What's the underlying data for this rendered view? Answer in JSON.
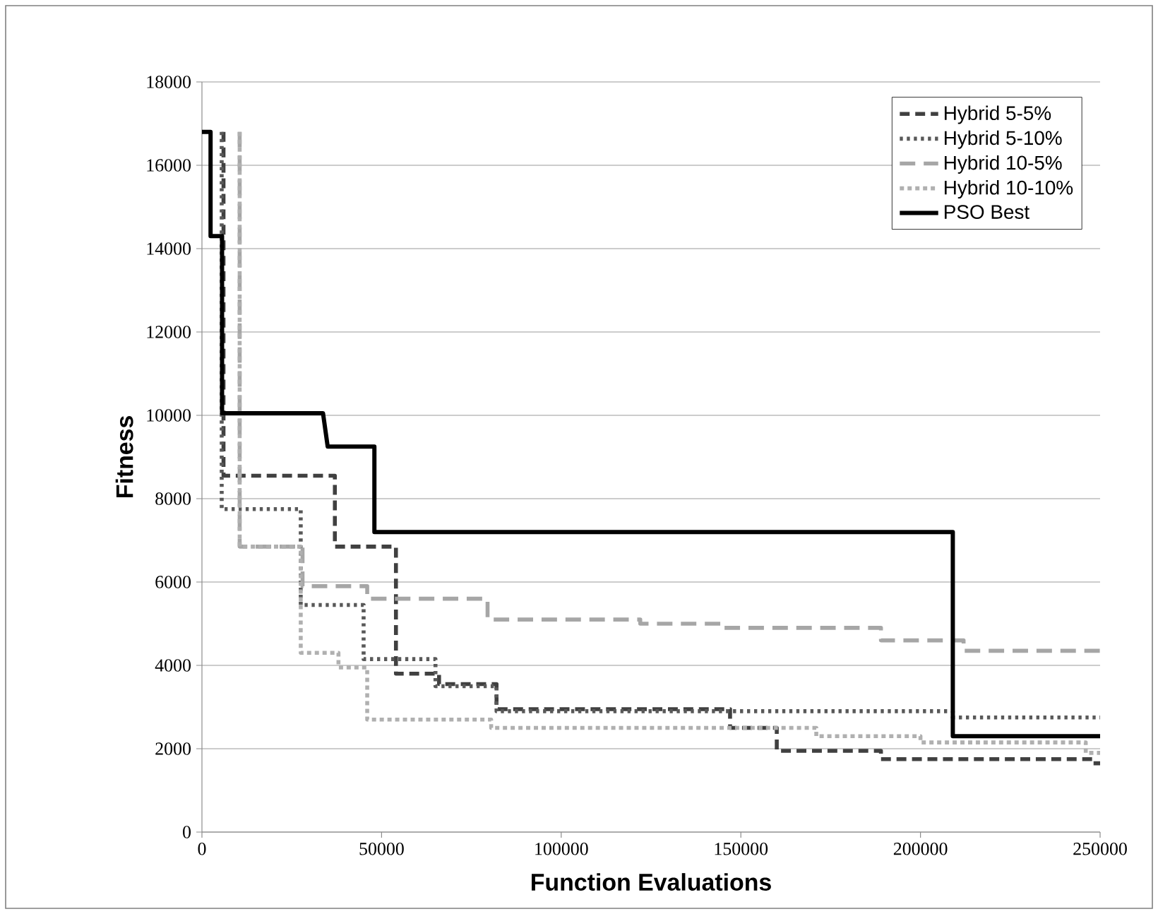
{
  "chart_data": {
    "type": "line",
    "xlabel": "Function Evaluations",
    "ylabel": "Fitness",
    "xlim": [
      0,
      250000
    ],
    "xticks": [
      0,
      50000,
      100000,
      150000,
      200000,
      250000
    ],
    "ylim": [
      0,
      18000
    ],
    "yticks": [
      0,
      2000,
      4000,
      6000,
      8000,
      10000,
      12000,
      14000,
      16000,
      18000
    ],
    "grid": "y",
    "legend": "top right",
    "marker": "none",
    "series": [
      {
        "name": "Hybrid 5-5%",
        "color": "#404040",
        "line_style": "dashed",
        "x": [
          6000,
          6000,
          37000,
          37000,
          54000,
          54000,
          66000,
          66000,
          82000,
          82000,
          147000,
          147000,
          160000,
          160000,
          189000,
          189000,
          248000,
          248000,
          250000
        ],
        "values": [
          16800,
          8550,
          8550,
          6850,
          6850,
          3800,
          3800,
          3550,
          3550,
          2950,
          2950,
          2500,
          2500,
          1950,
          1950,
          1750,
          1750,
          1650,
          1650
        ]
      },
      {
        "name": "Hybrid 5-10%",
        "color": "#595959",
        "line_style": "dotted",
        "x": [
          5500,
          5500,
          27500,
          27500,
          45000,
          45000,
          65000,
          65000,
          82000,
          82000,
          209000,
          209000,
          250000
        ],
        "values": [
          16800,
          7750,
          7750,
          5450,
          5450,
          4150,
          4150,
          3500,
          3500,
          2900,
          2900,
          2750,
          2750
        ]
      },
      {
        "name": "Hybrid 10-5%",
        "color": "#a6a6a6",
        "line_style": "dashed",
        "x": [
          10500,
          10500,
          28000,
          28000,
          46000,
          46000,
          79500,
          79500,
          122000,
          122000,
          145000,
          145000,
          189000,
          189000,
          212000,
          212000,
          250000
        ],
        "values": [
          16800,
          6850,
          6850,
          5900,
          5900,
          5600,
          5600,
          5100,
          5100,
          5000,
          5000,
          4900,
          4900,
          4600,
          4600,
          4350,
          4350
        ]
      },
      {
        "name": "Hybrid 10-10%",
        "color": "#b0b0b0",
        "line_style": "dotted",
        "x": [
          10500,
          10500,
          27500,
          27500,
          38000,
          38000,
          46000,
          46000,
          80500,
          80500,
          171000,
          171000,
          200000,
          200000,
          246000,
          246000,
          250000
        ],
        "values": [
          16800,
          6850,
          6850,
          4300,
          4300,
          3950,
          3950,
          2700,
          2700,
          2500,
          2500,
          2300,
          2300,
          2150,
          2150,
          1900,
          1900
        ]
      },
      {
        "name": "PSO Best",
        "color": "#000000",
        "line_style": "solid",
        "x": [
          0,
          2400,
          2400,
          5600,
          5600,
          33700,
          35000,
          48000,
          48000,
          209000,
          209000,
          250000
        ],
        "values": [
          16800,
          16800,
          14300,
          14300,
          10050,
          10050,
          9250,
          9250,
          7200,
          7200,
          2300,
          2300
        ]
      }
    ]
  }
}
